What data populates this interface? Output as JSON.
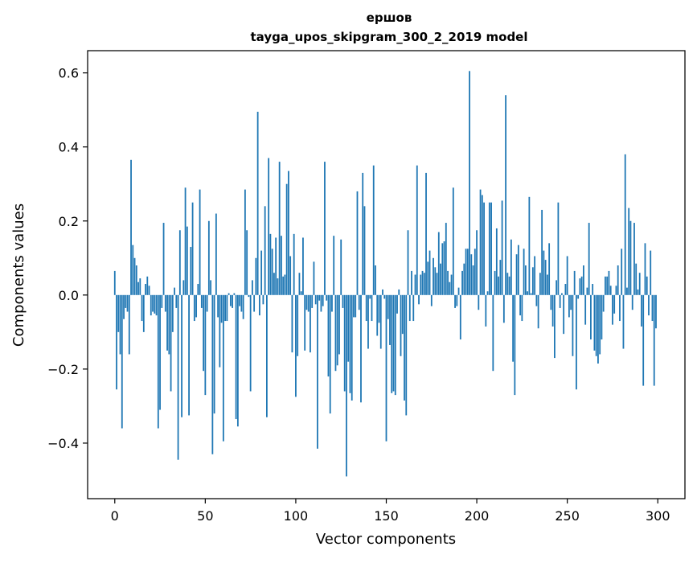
{
  "chart_data": {
    "type": "bar",
    "title": "ершов",
    "subtitle": "tayga_upos_skipgram_300_2_2019 model",
    "xlabel": "Vector components",
    "ylabel": "Components values",
    "xlim": [
      -15,
      315
    ],
    "ylim": [
      -0.55,
      0.66
    ],
    "xticks": [
      0,
      50,
      100,
      150,
      200,
      250,
      300
    ],
    "xtick_labels": [
      "0",
      "50",
      "100",
      "150",
      "200",
      "250",
      "300"
    ],
    "yticks": [
      -0.4,
      -0.2,
      0.0,
      0.2,
      0.4,
      0.6
    ],
    "ytick_labels": [
      "−0.4",
      "−0.2",
      "0.0",
      "0.2",
      "0.4",
      "0.6"
    ],
    "bar_color": "#1f77b4",
    "grid": false,
    "legend": "none",
    "x": "components 0..299 (one bar per component)",
    "values": [
      0.065,
      -0.255,
      -0.1,
      -0.16,
      -0.36,
      -0.065,
      -0.035,
      -0.045,
      -0.16,
      0.365,
      0.135,
      0.1,
      0.08,
      0.035,
      0.045,
      -0.07,
      -0.1,
      0.03,
      0.05,
      0.025,
      -0.055,
      -0.045,
      -0.05,
      -0.055,
      -0.36,
      -0.31,
      -0.035,
      0.195,
      -0.045,
      -0.15,
      -0.16,
      -0.26,
      -0.1,
      0.02,
      -0.035,
      -0.445,
      0.175,
      -0.33,
      0.04,
      0.29,
      0.185,
      -0.325,
      0.13,
      0.25,
      -0.07,
      -0.06,
      0.03,
      0.285,
      -0.035,
      -0.205,
      -0.27,
      -0.045,
      0.2,
      0.04,
      -0.43,
      -0.32,
      0.22,
      -0.06,
      -0.195,
      -0.075,
      -0.395,
      -0.07,
      -0.07,
      0.005,
      -0.03,
      -0.035,
      0.005,
      -0.335,
      -0.355,
      -0.03,
      -0.045,
      -0.065,
      0.285,
      0.175,
      -0.005,
      -0.26,
      0.04,
      -0.045,
      0.1,
      0.495,
      -0.055,
      0.12,
      -0.025,
      0.24,
      -0.33,
      0.37,
      0.165,
      0.125,
      0.06,
      0.155,
      0.045,
      0.36,
      0.16,
      0.05,
      0.055,
      0.3,
      0.335,
      0.105,
      -0.155,
      0.165,
      -0.275,
      -0.165,
      0.06,
      0.01,
      0.155,
      -0.15,
      -0.04,
      -0.045,
      -0.155,
      -0.035,
      0.09,
      -0.025,
      -0.415,
      -0.015,
      -0.045,
      -0.03,
      0.36,
      -0.015,
      -0.22,
      -0.32,
      -0.045,
      0.16,
      -0.205,
      -0.19,
      -0.16,
      0.15,
      -0.035,
      -0.26,
      -0.49,
      -0.18,
      -0.265,
      -0.285,
      -0.06,
      -0.06,
      0.28,
      -0.04,
      -0.29,
      0.33,
      0.24,
      -0.07,
      -0.145,
      -0.01,
      -0.07,
      0.35,
      0.08,
      -0.11,
      -0.075,
      -0.145,
      0.015,
      -0.01,
      -0.395,
      -0.065,
      -0.135,
      -0.265,
      -0.26,
      -0.27,
      -0.05,
      0.015,
      -0.165,
      -0.105,
      -0.285,
      -0.325,
      0.175,
      -0.07,
      0.065,
      -0.07,
      0.055,
      0.35,
      -0.025,
      0.055,
      0.065,
      0.06,
      0.33,
      0.09,
      0.12,
      -0.03,
      0.1,
      0.075,
      0.06,
      0.17,
      0.085,
      0.14,
      0.145,
      0.195,
      0.065,
      0.035,
      0.055,
      0.29,
      -0.035,
      -0.03,
      0.02,
      -0.12,
      0.065,
      0.085,
      0.125,
      0.125,
      0.605,
      0.11,
      0.08,
      0.125,
      0.175,
      -0.04,
      0.285,
      0.27,
      0.25,
      -0.085,
      0.01,
      0.25,
      0.25,
      -0.205,
      0.065,
      0.18,
      0.05,
      0.095,
      0.255,
      -0.075,
      0.54,
      0.06,
      0.05,
      0.15,
      -0.18,
      -0.27,
      0.11,
      0.135,
      -0.055,
      -0.07,
      0.125,
      0.08,
      0.01,
      0.265,
      0.005,
      0.075,
      0.105,
      -0.03,
      -0.09,
      0.06,
      0.23,
      0.12,
      0.095,
      0.055,
      0.14,
      -0.04,
      -0.085,
      -0.17,
      0.04,
      0.25,
      -0.035,
      0.005,
      -0.105,
      0.03,
      0.105,
      -0.06,
      -0.04,
      -0.165,
      0.065,
      -0.255,
      -0.01,
      0.045,
      0.05,
      0.08,
      -0.08,
      0.02,
      0.195,
      -0.12,
      0.03,
      -0.15,
      -0.165,
      -0.185,
      -0.16,
      -0.12,
      -0.045,
      0.05,
      0.05,
      0.065,
      0.025,
      -0.08,
      -0.05,
      0.025,
      0.08,
      -0.07,
      0.125,
      -0.145,
      0.38,
      0.02,
      0.235,
      0.2,
      -0.04,
      0.195,
      0.085,
      0.015,
      0.06,
      -0.085,
      -0.245,
      0.14,
      0.05,
      -0.055,
      0.12,
      -0.07,
      -0.245,
      -0.09
    ]
  }
}
